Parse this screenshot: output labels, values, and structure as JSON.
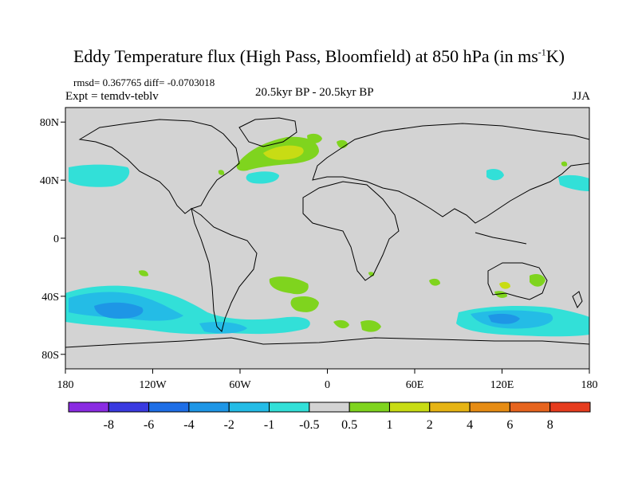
{
  "title_main": "Eddy Temperature flux (High Pass, Bloomfield) at 850 hPa (in ms",
  "title_sup": "-1",
  "title_end": "K)",
  "stats": "rmsd= 0.367765 diff= -0.0703018",
  "expt": "Expt = temdv-teblv",
  "center_label": "20.5kyr BP - 20.5kyr BP",
  "season": "JJA",
  "map": {
    "land_fill": "#d3d3d3",
    "outline_color": "#000000",
    "lon_ticks": [
      "180",
      "120W",
      "60W",
      "0",
      "60E",
      "120E",
      "180"
    ],
    "lat_ticks": [
      "80N",
      "40N",
      "0",
      "40S",
      "80S"
    ],
    "lon_values": [
      -180,
      -120,
      -60,
      0,
      60,
      120,
      180
    ],
    "lat_values": [
      80,
      40,
      0,
      -40,
      -80
    ],
    "lon_range": [
      -180,
      180
    ],
    "lat_range": [
      -90,
      90
    ]
  },
  "colorbar": {
    "colors": [
      "#8a2be2",
      "#3a3ae0",
      "#1e6ee6",
      "#1e96e6",
      "#24bce6",
      "#32e0d8",
      "#d3d3d3",
      "#7fd41e",
      "#c8dc14",
      "#e6b414",
      "#e68c14",
      "#e6641e",
      "#e63c1e"
    ],
    "labels": [
      "-8",
      "-6",
      "-4",
      "-2",
      "-1",
      "-0.5",
      "0.5",
      "1",
      "2",
      "4",
      "6",
      "8"
    ]
  }
}
